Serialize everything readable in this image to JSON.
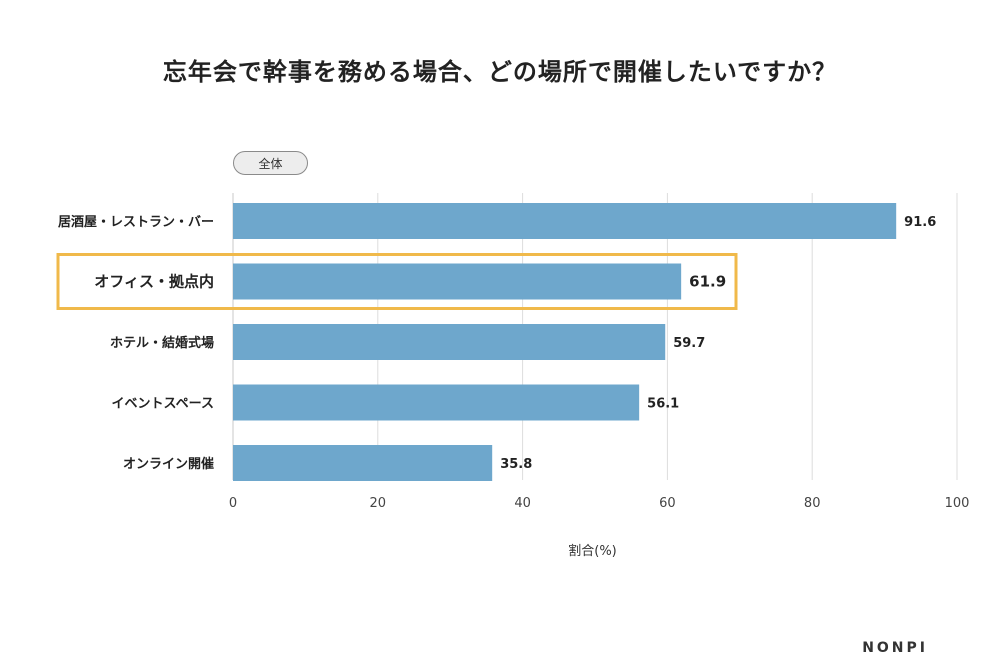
{
  "title": "忘年会で幹事を務める場合、どの場所で開催したいですか？",
  "segment_label": "全体",
  "brand": "NONPI",
  "colors": {
    "bar": "#6ea7cc",
    "highlight_border": "#f0b94a",
    "grid": "#dddddd",
    "axis_text": "#444444"
  },
  "chart_data": {
    "type": "bar",
    "orientation": "horizontal",
    "categories": [
      "居酒屋・レストラン・バー",
      "オフィス・拠点内",
      "ホテル・結婚式場",
      "イベントスペース",
      "オンライン開催"
    ],
    "values": [
      91.6,
      61.9,
      59.7,
      56.1,
      35.8
    ],
    "value_labels": [
      "91.6",
      "61.9",
      "59.7",
      "56.1",
      "35.8"
    ],
    "highlighted_category": "オフィス・拠点内",
    "xlabel": "割合(%)",
    "xlim": [
      0,
      100
    ],
    "xticks": [
      "0",
      "20",
      "40",
      "60",
      "80",
      "100"
    ],
    "grid": true
  }
}
